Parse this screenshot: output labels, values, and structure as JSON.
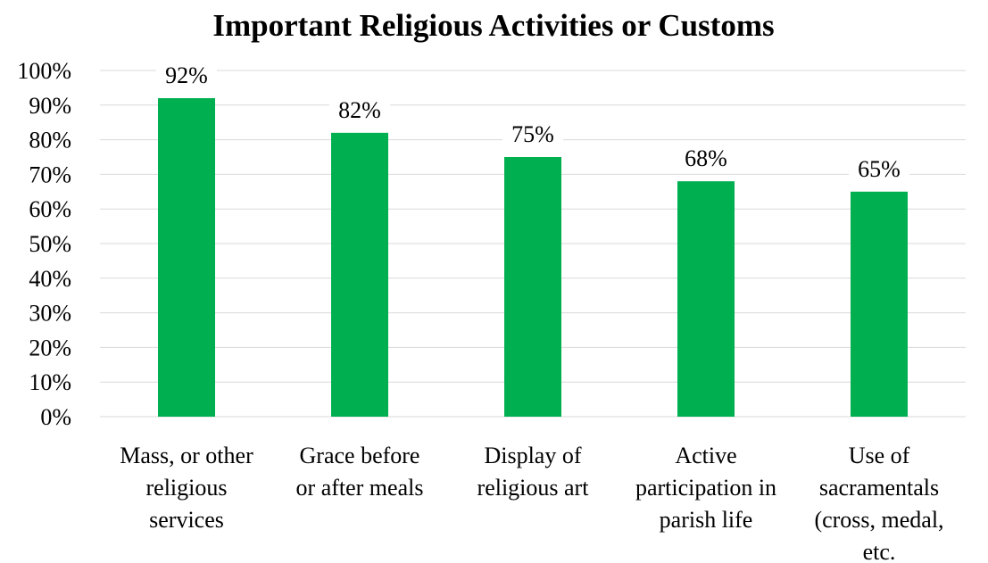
{
  "chart_data": {
    "type": "bar",
    "title": "Important Religious Activities or Customs",
    "xlabel": "",
    "ylabel": "",
    "categories": [
      "Mass, or other religious services",
      "Grace before or after meals",
      "Display of religious art",
      "Active participation in parish life",
      "Use of sacramentals (cross, medal, etc."
    ],
    "category_lines": [
      [
        "Mass, or other",
        "religious",
        "services"
      ],
      [
        "Grace before",
        "or after meals"
      ],
      [
        "Display of",
        "religious art"
      ],
      [
        "Active",
        "participation in",
        "parish life"
      ],
      [
        "Use of",
        "sacramentals",
        "(cross, medal,",
        "etc."
      ]
    ],
    "values": [
      92,
      82,
      75,
      68,
      65
    ],
    "data_labels": [
      "92%",
      "82%",
      "75%",
      "68%",
      "65%"
    ],
    "ylim": [
      0,
      100
    ],
    "yticks": [
      0,
      10,
      20,
      30,
      40,
      50,
      60,
      70,
      80,
      90,
      100
    ],
    "ytick_labels": [
      "0%",
      "10%",
      "20%",
      "30%",
      "40%",
      "50%",
      "60%",
      "70%",
      "80%",
      "90%",
      "100%"
    ],
    "grid": true,
    "legend": "none",
    "bar_color": "#00b050",
    "gridline_color": "#d9d9d9"
  }
}
